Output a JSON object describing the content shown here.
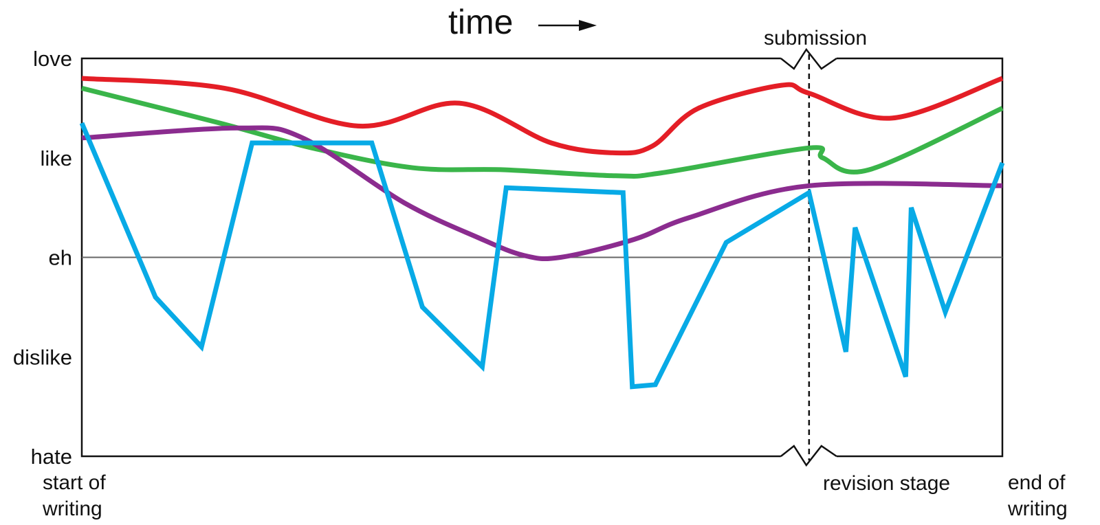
{
  "chart_data": {
    "type": "line",
    "title": "time",
    "title_arrow": "→",
    "xlabel": "",
    "ylabel": "",
    "xlim": [
      0,
      100
    ],
    "ylim": [
      0,
      4
    ],
    "y_ticks": [
      {
        "value": 4,
        "label": "love"
      },
      {
        "value": 3,
        "label": "like"
      },
      {
        "value": 2,
        "label": "eh"
      },
      {
        "value": 1,
        "label": "dislike"
      },
      {
        "value": 0,
        "label": "hate"
      }
    ],
    "reference_line_y": 2,
    "x_annotations": {
      "start": "start of writing",
      "end": "end of writing",
      "submission": "submission",
      "revision": "revision stage",
      "submission_x": 79
    },
    "grid": false,
    "legend": "none",
    "series": [
      {
        "color": "#e41e26",
        "x": [
          0,
          15.5,
          30,
          41,
          51,
          58,
          62,
          67,
          76,
          79,
          88,
          100
        ],
        "y": [
          3.8,
          3.7,
          3.32,
          3.55,
          3.15,
          3.05,
          3.12,
          3.5,
          3.73,
          3.65,
          3.4,
          3.8
        ]
      },
      {
        "color": "#3ab54a",
        "x": [
          0,
          15,
          25,
          36,
          46,
          58,
          63,
          79,
          80.5,
          85.5,
          100
        ],
        "y": [
          3.7,
          3.35,
          3.1,
          2.9,
          2.88,
          2.82,
          2.85,
          3.1,
          3.0,
          2.88,
          3.5
        ]
      },
      {
        "color": "#8b2c8f",
        "x": [
          0,
          17,
          24,
          35,
          43,
          48,
          52,
          60,
          66,
          79,
          100
        ],
        "y": [
          3.2,
          3.3,
          3.2,
          2.55,
          2.2,
          2.02,
          2.0,
          2.18,
          2.4,
          2.72,
          2.72
        ]
      },
      {
        "color": "#08aae6",
        "x": [
          0,
          8,
          13,
          18.5,
          31.5,
          37,
          43.5,
          46.1,
          58.8,
          59.8,
          62.3,
          70,
          79,
          83,
          84,
          89.5,
          90.1,
          93.8,
          100
        ],
        "y": [
          3.35,
          1.6,
          1.1,
          3.15,
          3.15,
          1.5,
          0.9,
          2.7,
          2.65,
          0.7,
          0.72,
          2.15,
          2.65,
          1.05,
          2.3,
          0.8,
          2.5,
          1.45,
          2.95
        ]
      }
    ]
  }
}
